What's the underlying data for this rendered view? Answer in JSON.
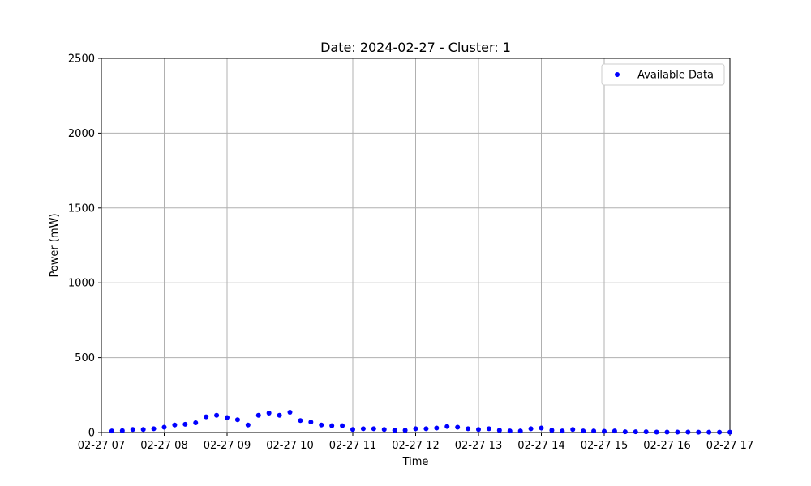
{
  "chart_data": {
    "type": "scatter",
    "title": "Date: 2024-02-27 - Cluster: 1",
    "xlabel": "Time",
    "ylabel": "Power (mW)",
    "xlim": [
      "2024-02-27 07:00",
      "2024-02-27 17:00"
    ],
    "ylim": [
      0,
      2500
    ],
    "x_ticks": [
      "02-27 07",
      "02-27 08",
      "02-27 09",
      "02-27 10",
      "02-27 11",
      "02-27 12",
      "02-27 13",
      "02-27 14",
      "02-27 15",
      "02-27 16",
      "02-27 17"
    ],
    "y_ticks": [
      "0",
      "500",
      "1000",
      "1500",
      "2000",
      "2500"
    ],
    "grid": true,
    "legend_position": "top-right",
    "series": [
      {
        "name": "Available Data",
        "color": "#0000ff",
        "x": [
          "2024-02-27 07:10",
          "2024-02-27 07:20",
          "2024-02-27 07:30",
          "2024-02-27 07:40",
          "2024-02-27 07:50",
          "2024-02-27 08:00",
          "2024-02-27 08:10",
          "2024-02-27 08:20",
          "2024-02-27 08:30",
          "2024-02-27 08:40",
          "2024-02-27 08:50",
          "2024-02-27 09:00",
          "2024-02-27 09:10",
          "2024-02-27 09:20",
          "2024-02-27 09:30",
          "2024-02-27 09:40",
          "2024-02-27 09:50",
          "2024-02-27 10:00",
          "2024-02-27 10:10",
          "2024-02-27 10:20",
          "2024-02-27 10:30",
          "2024-02-27 10:40",
          "2024-02-27 10:50",
          "2024-02-27 11:00",
          "2024-02-27 11:10",
          "2024-02-27 11:20",
          "2024-02-27 11:30",
          "2024-02-27 11:40",
          "2024-02-27 11:50",
          "2024-02-27 12:00",
          "2024-02-27 12:10",
          "2024-02-27 12:20",
          "2024-02-27 12:30",
          "2024-02-27 12:40",
          "2024-02-27 12:50",
          "2024-02-27 13:00",
          "2024-02-27 13:10",
          "2024-02-27 13:20",
          "2024-02-27 13:30",
          "2024-02-27 13:40",
          "2024-02-27 13:50",
          "2024-02-27 14:00",
          "2024-02-27 14:10",
          "2024-02-27 14:20",
          "2024-02-27 14:30",
          "2024-02-27 14:40",
          "2024-02-27 14:50",
          "2024-02-27 15:00",
          "2024-02-27 15:10",
          "2024-02-27 15:20",
          "2024-02-27 15:30",
          "2024-02-27 15:40",
          "2024-02-27 15:50",
          "2024-02-27 16:00",
          "2024-02-27 16:10",
          "2024-02-27 16:20",
          "2024-02-27 16:30",
          "2024-02-27 16:40",
          "2024-02-27 16:50",
          "2024-02-27 17:00"
        ],
        "y": [
          10,
          12,
          20,
          20,
          25,
          35,
          50,
          55,
          65,
          105,
          115,
          100,
          85,
          50,
          115,
          130,
          115,
          135,
          80,
          70,
          50,
          45,
          45,
          20,
          25,
          25,
          20,
          15,
          15,
          25,
          25,
          30,
          40,
          35,
          25,
          20,
          25,
          15,
          10,
          10,
          25,
          30,
          15,
          10,
          20,
          10,
          10,
          8,
          10,
          5,
          5,
          5,
          3,
          3,
          3,
          3,
          2,
          2,
          2,
          2
        ]
      }
    ]
  }
}
